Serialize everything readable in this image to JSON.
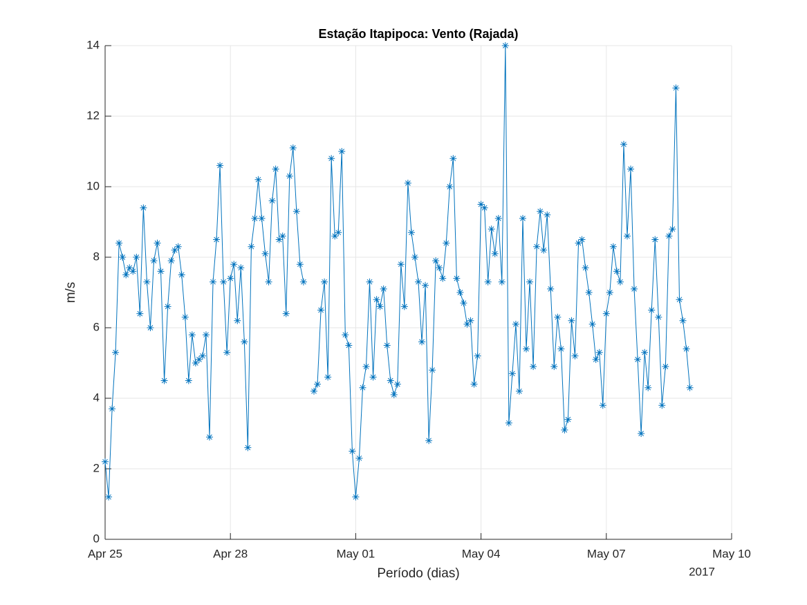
{
  "chart_data": {
    "type": "line",
    "title": "Estação Itapipoca: Vento (Rajada)",
    "x_label": "Período (dias)",
    "y_label": "m/s",
    "x_year_label": "2017",
    "x": [
      "2017-04-25 00:00",
      "2017-04-25 02:00",
      "2017-04-25 04:00",
      "2017-04-25 06:00",
      "2017-04-25 08:00",
      "2017-04-25 10:00",
      "2017-04-25 12:00",
      "2017-04-25 14:00",
      "2017-04-25 16:00",
      "2017-04-25 18:00",
      "2017-04-25 20:00",
      "2017-04-25 22:00",
      "2017-04-26 00:00",
      "2017-04-26 02:00",
      "2017-04-26 04:00",
      "2017-04-26 06:00",
      "2017-04-26 08:00",
      "2017-04-26 10:00",
      "2017-04-26 12:00",
      "2017-04-26 14:00",
      "2017-04-26 16:00",
      "2017-04-26 18:00",
      "2017-04-26 20:00",
      "2017-04-26 22:00",
      "2017-04-27 00:00",
      "2017-04-27 02:00",
      "2017-04-27 04:00",
      "2017-04-27 06:00",
      "2017-04-27 08:00",
      "2017-04-27 10:00",
      "2017-04-27 12:00",
      "2017-04-27 14:00",
      "2017-04-27 16:00",
      "2017-04-27 18:00",
      "2017-04-27 20:00",
      "2017-04-27 22:00",
      "2017-04-28 00:00",
      "2017-04-28 02:00",
      "2017-04-28 04:00",
      "2017-04-28 06:00",
      "2017-04-28 08:00",
      "2017-04-28 10:00",
      "2017-04-28 12:00",
      "2017-04-28 14:00",
      "2017-04-28 16:00",
      "2017-04-28 18:00",
      "2017-04-28 20:00",
      "2017-04-28 22:00",
      "2017-04-29 00:00",
      "2017-04-29 02:00",
      "2017-04-29 04:00",
      "2017-04-29 06:00",
      "2017-04-29 08:00",
      "2017-04-29 10:00",
      "2017-04-29 12:00",
      "2017-04-29 14:00",
      "2017-04-29 16:00",
      "2017-04-29 18:00",
      "2017-04-29 20:00",
      "2017-04-29 22:00",
      "2017-04-30 00:00",
      "2017-04-30 02:00",
      "2017-04-30 04:00",
      "2017-04-30 06:00",
      "2017-04-30 08:00",
      "2017-04-30 10:00",
      "2017-04-30 12:00",
      "2017-04-30 14:00",
      "2017-04-30 16:00",
      "2017-04-30 18:00",
      "2017-04-30 20:00",
      "2017-04-30 22:00",
      "2017-05-01 00:00",
      "2017-05-01 02:00",
      "2017-05-01 04:00",
      "2017-05-01 06:00",
      "2017-05-01 08:00",
      "2017-05-01 10:00",
      "2017-05-01 12:00",
      "2017-05-01 14:00",
      "2017-05-01 16:00",
      "2017-05-01 18:00",
      "2017-05-01 20:00",
      "2017-05-01 22:00",
      "2017-05-02 00:00",
      "2017-05-02 02:00",
      "2017-05-02 04:00",
      "2017-05-02 06:00",
      "2017-05-02 08:00",
      "2017-05-02 10:00",
      "2017-05-02 12:00",
      "2017-05-02 14:00",
      "2017-05-02 16:00",
      "2017-05-02 18:00",
      "2017-05-02 20:00",
      "2017-05-02 22:00",
      "2017-05-03 00:00",
      "2017-05-03 02:00",
      "2017-05-03 04:00",
      "2017-05-03 06:00",
      "2017-05-03 08:00",
      "2017-05-03 10:00",
      "2017-05-03 12:00",
      "2017-05-03 14:00",
      "2017-05-03 16:00",
      "2017-05-03 18:00",
      "2017-05-03 20:00",
      "2017-05-03 22:00",
      "2017-05-04 00:00",
      "2017-05-04 02:00",
      "2017-05-04 04:00",
      "2017-05-04 06:00",
      "2017-05-04 08:00",
      "2017-05-04 10:00",
      "2017-05-04 12:00",
      "2017-05-04 14:00",
      "2017-05-04 16:00",
      "2017-05-04 18:00",
      "2017-05-04 20:00",
      "2017-05-04 22:00",
      "2017-05-05 00:00",
      "2017-05-05 02:00",
      "2017-05-05 04:00",
      "2017-05-05 06:00",
      "2017-05-05 08:00",
      "2017-05-05 10:00",
      "2017-05-05 12:00",
      "2017-05-05 14:00",
      "2017-05-05 16:00",
      "2017-05-05 18:00",
      "2017-05-05 20:00",
      "2017-05-05 22:00",
      "2017-05-06 00:00",
      "2017-05-06 02:00",
      "2017-05-06 04:00",
      "2017-05-06 06:00",
      "2017-05-06 08:00",
      "2017-05-06 10:00",
      "2017-05-06 12:00",
      "2017-05-06 14:00",
      "2017-05-06 16:00",
      "2017-05-06 18:00",
      "2017-05-06 20:00",
      "2017-05-06 22:00",
      "2017-05-07 00:00",
      "2017-05-07 02:00",
      "2017-05-07 04:00",
      "2017-05-07 06:00",
      "2017-05-07 08:00",
      "2017-05-07 10:00",
      "2017-05-07 12:00",
      "2017-05-07 14:00",
      "2017-05-07 16:00",
      "2017-05-07 18:00",
      "2017-05-07 20:00",
      "2017-05-07 22:00",
      "2017-05-08 00:00",
      "2017-05-08 02:00",
      "2017-05-08 04:00",
      "2017-05-08 06:00",
      "2017-05-08 08:00",
      "2017-05-08 10:00",
      "2017-05-08 12:00",
      "2017-05-08 14:00",
      "2017-05-08 16:00",
      "2017-05-08 18:00",
      "2017-05-08 20:00",
      "2017-05-08 22:00",
      "2017-05-09 00:00"
    ],
    "series": [
      {
        "color": "#0072bd",
        "values": [
          2.2,
          1.2,
          3.7,
          5.3,
          8.4,
          8.0,
          7.5,
          7.7,
          7.6,
          8.0,
          6.4,
          9.4,
          7.3,
          6.0,
          7.9,
          8.4,
          7.6,
          4.5,
          6.6,
          7.9,
          8.2,
          8.3,
          7.5,
          6.3,
          4.5,
          5.8,
          5.0,
          5.1,
          5.2,
          5.8,
          2.9,
          7.3,
          8.5,
          10.6,
          7.3,
          5.3,
          7.4,
          7.8,
          6.2,
          7.7,
          5.6,
          2.6,
          8.3,
          9.1,
          10.2,
          9.1,
          8.1,
          7.3,
          9.6,
          10.5,
          8.5,
          8.6,
          6.4,
          10.3,
          11.1,
          9.3,
          7.8,
          7.3,
          null,
          null,
          4.2,
          4.4,
          6.5,
          7.3,
          4.6,
          10.8,
          8.6,
          8.7,
          11.0,
          5.8,
          5.5,
          2.5,
          1.2,
          2.3,
          4.3,
          4.9,
          7.3,
          4.6,
          6.8,
          6.6,
          7.1,
          5.5,
          4.5,
          4.1,
          4.4,
          7.8,
          6.6,
          10.1,
          8.7,
          8.0,
          7.3,
          5.6,
          7.2,
          2.8,
          4.8,
          7.9,
          7.7,
          7.4,
          8.4,
          10.0,
          10.8,
          7.4,
          7.0,
          6.7,
          6.1,
          6.2,
          4.4,
          5.2,
          9.5,
          9.4,
          7.3,
          8.8,
          8.1,
          9.1,
          7.3,
          14.0,
          3.3,
          4.7,
          6.1,
          4.2,
          9.1,
          5.4,
          7.3,
          4.9,
          8.3,
          9.3,
          8.2,
          9.2,
          7.1,
          4.9,
          6.3,
          5.4,
          3.1,
          3.4,
          6.2,
          5.2,
          8.4,
          8.5,
          7.7,
          7.0,
          6.1,
          5.1,
          5.3,
          3.8,
          6.4,
          7.0,
          8.3,
          7.6,
          7.3,
          11.2,
          8.6,
          10.5,
          7.1,
          5.1,
          3.0,
          5.3,
          4.3,
          6.5,
          8.5,
          6.3,
          3.8,
          4.9,
          8.6,
          8.8,
          12.8,
          6.8,
          6.2,
          5.4,
          4.3
        ]
      }
    ],
    "xlim": [
      "2017-04-25 00:00",
      "2017-05-10 00:00"
    ],
    "xticks": [
      {
        "value": "2017-04-25 00:00",
        "label": "Apr 25"
      },
      {
        "value": "2017-04-28 00:00",
        "label": "Apr 28"
      },
      {
        "value": "2017-05-01 00:00",
        "label": "May 01"
      },
      {
        "value": "2017-05-04 00:00",
        "label": "May 04"
      },
      {
        "value": "2017-05-07 00:00",
        "label": "May 07"
      },
      {
        "value": "2017-05-10 00:00",
        "label": "May 10"
      }
    ],
    "ylim": [
      0,
      14
    ],
    "yticks": [
      0,
      2,
      4,
      6,
      8,
      10,
      12,
      14
    ],
    "grid": true
  }
}
